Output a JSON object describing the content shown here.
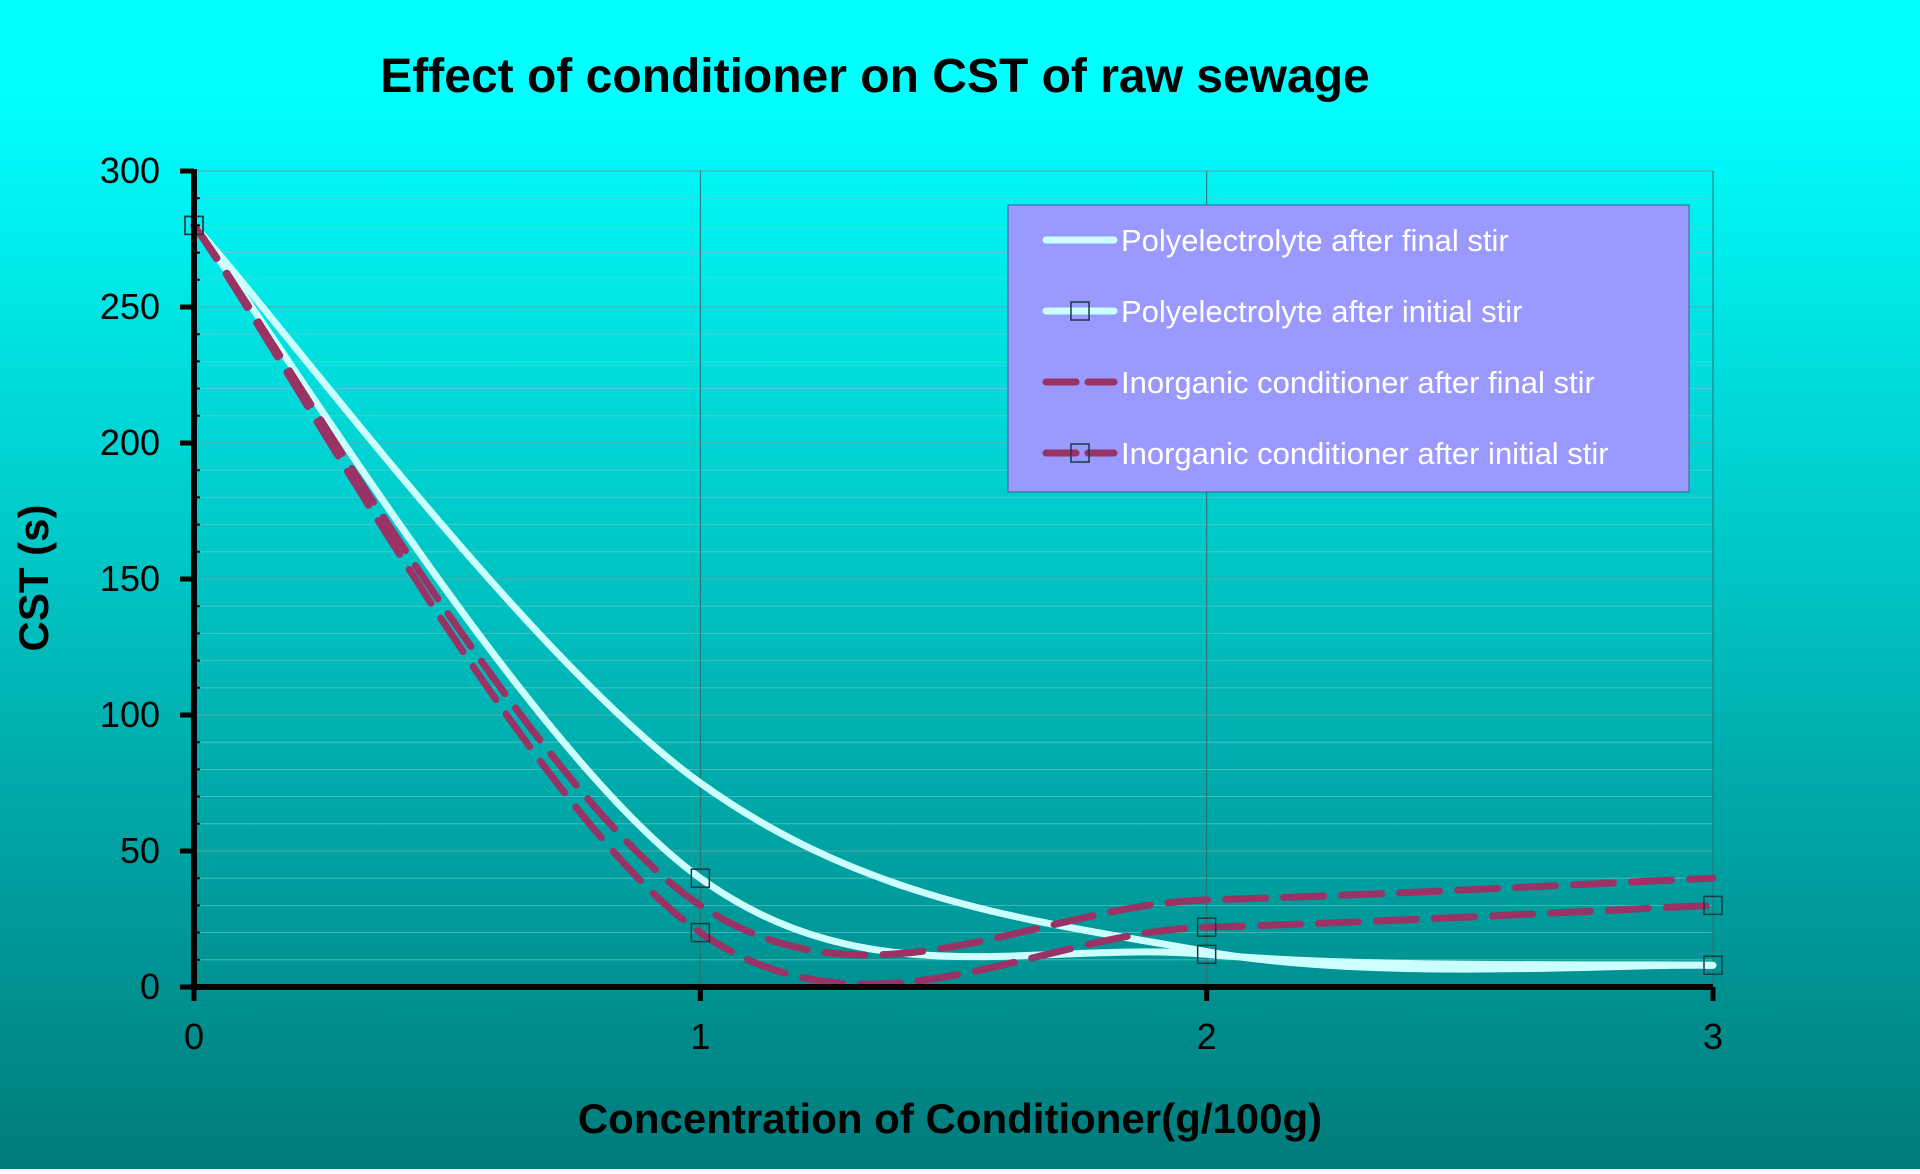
{
  "colors": {
    "bg_top": "#00FFFF",
    "bg_bottom": "#007B7B",
    "polyelectrolyte": "#CCFFFF",
    "inorganic": "#993366",
    "legend_bg": "#9999FF",
    "axis": "#000000"
  },
  "chart_data": {
    "type": "line",
    "title": "Effect of conditioner on CST of raw sewage",
    "xlabel": "Concentration of Conditioner(g/100g)",
    "ylabel": "CST (s)",
    "xlim": [
      0,
      3
    ],
    "ylim": [
      0,
      300
    ],
    "x_ticks": [
      "0",
      "1",
      "2",
      "3"
    ],
    "y_ticks": [
      "0",
      "50",
      "100",
      "150",
      "200",
      "250",
      "300"
    ],
    "grid": true,
    "legend_position": "top-right",
    "x": [
      0,
      1,
      2,
      3
    ],
    "series": [
      {
        "name": "Polyelectrolyte after final stir",
        "values": [
          280,
          75,
          13,
          8
        ],
        "style": "solid",
        "marker": "none",
        "color": "#CCFFFF"
      },
      {
        "name": "Polyelectrolyte after initial stir",
        "values": [
          280,
          40,
          12,
          8
        ],
        "style": "solid",
        "marker": "square",
        "color": "#CCFFFF"
      },
      {
        "name": "Inorganic conditioner after final stir",
        "values": [
          280,
          30,
          32,
          40
        ],
        "style": "dashed",
        "marker": "none",
        "color": "#993366"
      },
      {
        "name": "Inorganic conditioner after initial stir",
        "values": [
          280,
          20,
          22,
          30
        ],
        "style": "dashed",
        "marker": "square",
        "color": "#993366"
      }
    ]
  }
}
